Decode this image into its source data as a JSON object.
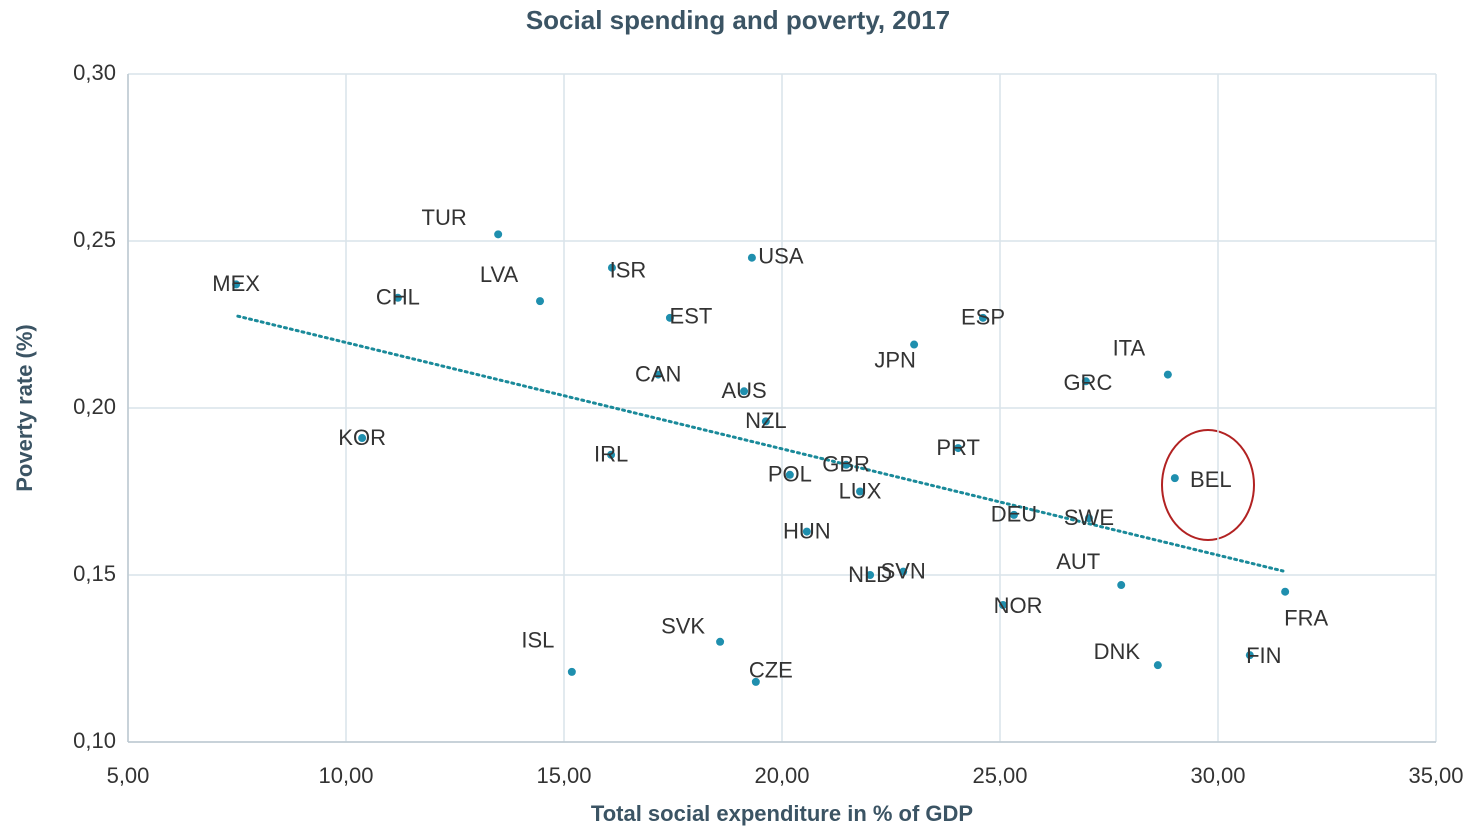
{
  "chart_data": {
    "type": "scatter",
    "title": "Social spending and poverty, 2017",
    "x_label": "Total social expenditure in % of GDP",
    "y_label": "Poverty rate (%)",
    "labels": [
      "TUR",
      "MEX",
      "CHL",
      "LVA",
      "ISR",
      "USA",
      "EST",
      "ESP",
      "JPN",
      "ITA",
      "GRC",
      "CAN",
      "AUS",
      "NZL",
      "KOR",
      "IRL",
      "PRT",
      "GBR",
      "POL",
      "BEL",
      "LUX",
      "DEU",
      "SWE",
      "HUN",
      "NLD",
      "SVN",
      "AUT",
      "FRA",
      "NOR",
      "SVK",
      "DNK",
      "FIN",
      "ISL",
      "CZE"
    ],
    "x": [
      13.49,
      7.48,
      11.19,
      14.45,
      16.1,
      19.31,
      17.43,
      24.61,
      23.03,
      28.85,
      26.97,
      17.16,
      19.13,
      19.63,
      10.37,
      16.08,
      24.04,
      21.47,
      20.18,
      29.01,
      21.79,
      25.32,
      27.04,
      20.57,
      22.02,
      22.78,
      27.78,
      31.54,
      25.07,
      18.58,
      28.62,
      30.73,
      15.18,
      19.4
    ],
    "y": [
      0.252,
      0.237,
      0.233,
      0.232,
      0.242,
      0.245,
      0.227,
      0.227,
      0.219,
      0.21,
      0.208,
      0.21,
      0.205,
      0.196,
      0.191,
      0.186,
      0.188,
      0.183,
      0.18,
      0.179,
      0.175,
      0.168,
      0.167,
      0.163,
      0.15,
      0.151,
      0.147,
      0.145,
      0.141,
      0.13,
      0.123,
      0.126,
      0.121,
      0.118
    ],
    "color": "#1f8fae",
    "trendline": {
      "x": [
        7.52,
        31.49
      ],
      "y": [
        0.2275,
        0.1512
      ],
      "color": "#1a8a9a"
    },
    "xlim": [
      5,
      35
    ],
    "xticks": [
      {
        "value": 5,
        "label": "5,00"
      },
      {
        "value": 10,
        "label": "10,00"
      },
      {
        "value": 15,
        "label": "15,00"
      },
      {
        "value": 20,
        "label": "20,00"
      },
      {
        "value": 25,
        "label": "25,00"
      },
      {
        "value": 30,
        "label": "30,00"
      },
      {
        "value": 35,
        "label": "35,00"
      }
    ],
    "ylim": [
      0.1,
      0.3
    ],
    "yticks": [
      {
        "value": 0.1,
        "label": "0,10"
      },
      {
        "value": 0.15,
        "label": "0,15"
      },
      {
        "value": 0.2,
        "label": "0,20"
      },
      {
        "value": 0.25,
        "label": "0,25"
      },
      {
        "value": 0.3,
        "label": "0,30"
      }
    ],
    "grid": true
  }
}
